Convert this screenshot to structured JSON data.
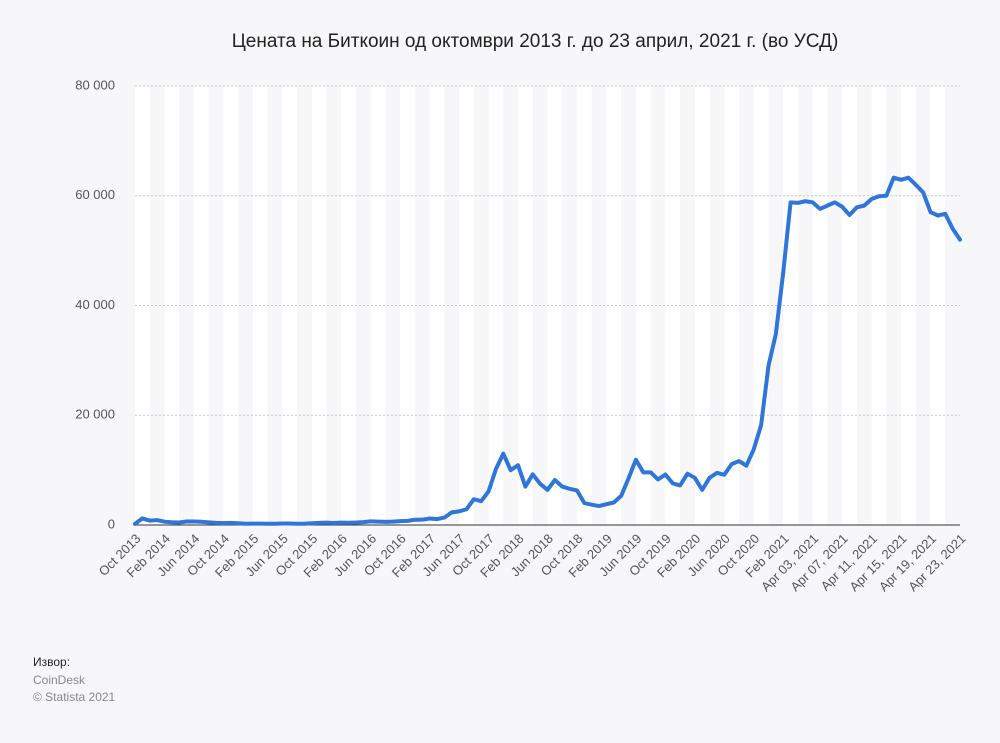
{
  "chart_data": {
    "type": "line",
    "title": "Цената на Биткоин од октомври 2013 г. до 23 април, 2021 г. (во УСД)",
    "source_label": "Извор:",
    "source": "CoinDesk",
    "copyright": "© Statista 2021",
    "categories": [
      "Oct 2013",
      null,
      null,
      null,
      "Feb 2014",
      null,
      null,
      null,
      "Jun 2014",
      null,
      null,
      null,
      "Oct 2014",
      null,
      null,
      null,
      "Feb 2015",
      null,
      null,
      null,
      "Jun 2015",
      null,
      null,
      null,
      "Oct 2015",
      null,
      null,
      null,
      "Feb 2016",
      null,
      null,
      null,
      "Jun 2016",
      null,
      null,
      null,
      "Oct 2016",
      null,
      null,
      null,
      "Feb 2017",
      null,
      null,
      null,
      "Jun 2017",
      null,
      null,
      null,
      "Oct 2017",
      null,
      null,
      null,
      "Feb 2018",
      null,
      null,
      null,
      "Jun 2018",
      null,
      null,
      null,
      "Oct 2018",
      null,
      null,
      null,
      "Feb 2019",
      null,
      null,
      null,
      "Jun 2019",
      null,
      null,
      null,
      "Oct 2019",
      null,
      null,
      null,
      "Feb 2020",
      null,
      null,
      null,
      "Jun 2020",
      null,
      null,
      null,
      "Oct 2020",
      null,
      null,
      null,
      "Feb 2021",
      null,
      null,
      null,
      "Apr 03, 2021",
      null,
      null,
      null,
      "Apr 07, 2021",
      null,
      null,
      null,
      "Apr 11, 2021",
      null,
      null,
      null,
      "Apr 15, 2021",
      null,
      null,
      null,
      "Apr 19, 2021",
      null,
      null,
      null,
      "Apr 23, 2021"
    ],
    "series": [
      {
        "name": "Bitcoin",
        "color": "#2f76d8",
        "values": [
          200,
          1200,
          800,
          900,
          600,
          500,
          450,
          630,
          640,
          590,
          480,
          390,
          340,
          380,
          320,
          220,
          250,
          245,
          235,
          230,
          265,
          285,
          230,
          235,
          315,
          380,
          430,
          370,
          440,
          415,
          450,
          530,
          670,
          625,
          575,
          610,
          700,
          745,
          960,
          970,
          1190,
          1080,
          1350,
          2300,
          2480,
          2870,
          4700,
          4340,
          6130,
          10200,
          13000,
          10000,
          10900,
          7000,
          9240,
          7500,
          6400,
          8200,
          7000,
          6600,
          6300,
          4000,
          3700,
          3450,
          3800,
          4100,
          5300,
          8500,
          11900,
          9600,
          9600,
          8300,
          9200,
          7600,
          7200,
          9350,
          8600,
          6400,
          8600,
          9500,
          9150,
          11100,
          11650,
          10800,
          13800,
          18200,
          29000,
          34800,
          46000,
          58800,
          58700,
          59000,
          58800,
          57600,
          58200,
          58800,
          58000,
          56500,
          57900,
          58200,
          59400,
          59900,
          60000,
          63300,
          62900,
          63300,
          62000,
          60600,
          57000,
          56400,
          56700,
          54000,
          52000
        ]
      }
    ],
    "ylim": [
      0,
      80000
    ],
    "yticks": [
      0,
      {
        "value": 20000,
        "label": "20 000"
      },
      {
        "value": 40000,
        "label": "40 000"
      },
      {
        "value": 60000,
        "label": "60 000"
      },
      {
        "value": 80000,
        "label": "80 000"
      }
    ],
    "grid": true
  }
}
